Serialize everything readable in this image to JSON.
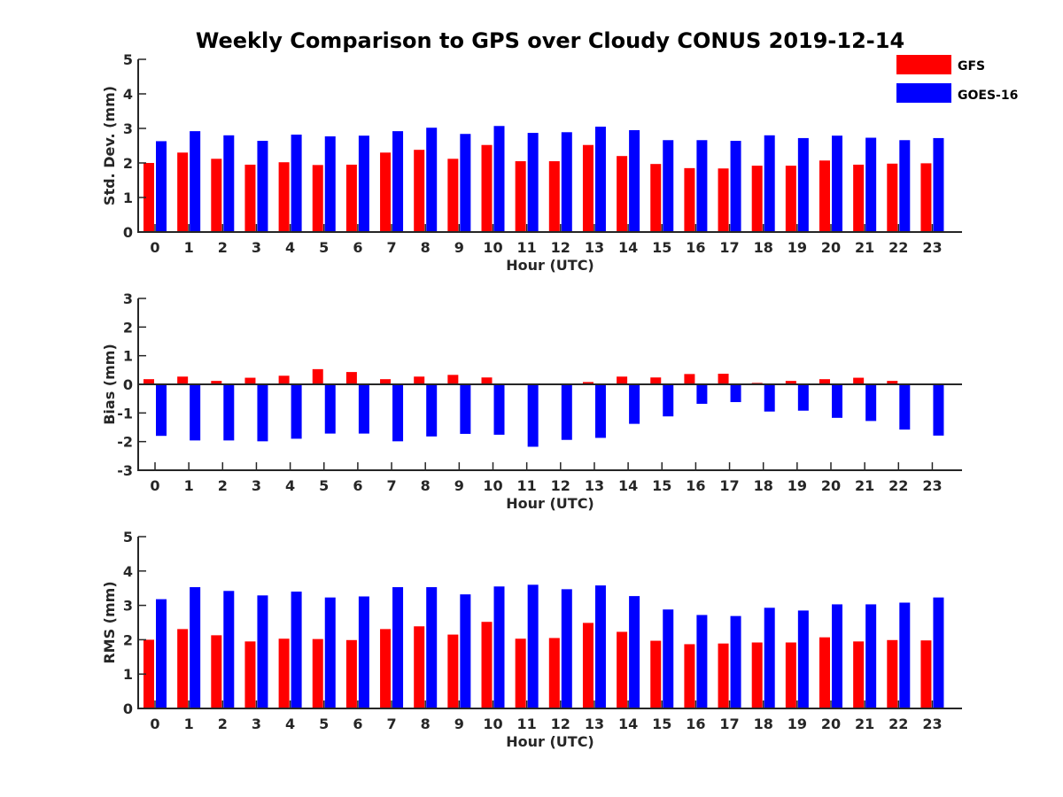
{
  "title": "Weekly Comparison to GPS over Cloudy CONUS 2019-12-14",
  "legend": [
    {
      "label": "GFS",
      "color": "#ff0000"
    },
    {
      "label": "GOES-16",
      "color": "#0000ff"
    }
  ],
  "chart_data": [
    {
      "type": "bar",
      "xlabel": "Hour (UTC)",
      "ylabel": "Std. Dev. (mm)",
      "ylim": [
        0,
        5
      ],
      "yticks": [
        0,
        1,
        2,
        3,
        4,
        5
      ],
      "categories": [
        "0",
        "1",
        "2",
        "3",
        "4",
        "5",
        "6",
        "7",
        "8",
        "9",
        "10",
        "11",
        "12",
        "13",
        "14",
        "15",
        "16",
        "17",
        "18",
        "19",
        "20",
        "21",
        "22",
        "23"
      ],
      "series": [
        {
          "name": "GFS",
          "color": "#ff0000",
          "values": [
            2.0,
            2.3,
            2.12,
            1.95,
            2.02,
            1.94,
            1.95,
            2.3,
            2.38,
            2.12,
            2.52,
            2.05,
            2.05,
            2.52,
            2.2,
            1.97,
            1.85,
            1.84,
            1.92,
            1.92,
            2.07,
            1.95,
            1.98,
            1.99
          ]
        },
        {
          "name": "GOES-16",
          "color": "#0000ff",
          "values": [
            2.63,
            2.92,
            2.8,
            2.64,
            2.82,
            2.77,
            2.79,
            2.92,
            3.02,
            2.84,
            3.07,
            2.87,
            2.89,
            3.05,
            2.95,
            2.66,
            2.66,
            2.64,
            2.8,
            2.72,
            2.79,
            2.73,
            2.66,
            2.72
          ]
        }
      ]
    },
    {
      "type": "bar",
      "xlabel": "Hour (UTC)",
      "ylabel": "Bias (mm)",
      "ylim": [
        -3,
        3
      ],
      "yticks": [
        -3,
        -2,
        -1,
        0,
        1,
        2,
        3
      ],
      "zero_line": true,
      "categories": [
        "0",
        "1",
        "2",
        "3",
        "4",
        "5",
        "6",
        "7",
        "8",
        "9",
        "10",
        "11",
        "12",
        "13",
        "14",
        "15",
        "16",
        "17",
        "18",
        "19",
        "20",
        "21",
        "22",
        "23"
      ],
      "series": [
        {
          "name": "GFS",
          "color": "#ff0000",
          "values": [
            0.18,
            0.27,
            0.12,
            0.23,
            0.3,
            0.53,
            0.43,
            0.18,
            0.27,
            0.33,
            0.24,
            -0.02,
            0.02,
            0.08,
            0.27,
            0.24,
            0.36,
            0.37,
            0.05,
            0.12,
            0.18,
            0.23,
            0.12,
            0.02
          ]
        },
        {
          "name": "GOES-16",
          "color": "#0000ff",
          "values": [
            -1.8,
            -1.96,
            -1.96,
            -1.99,
            -1.9,
            -1.72,
            -1.72,
            -1.99,
            -1.82,
            -1.73,
            -1.76,
            -2.18,
            -1.94,
            -1.87,
            -1.38,
            -1.12,
            -0.68,
            -0.62,
            -0.95,
            -0.92,
            -1.17,
            -1.28,
            -1.58,
            -1.79
          ]
        }
      ]
    },
    {
      "type": "bar",
      "xlabel": "Hour (UTC)",
      "ylabel": "RMS (mm)",
      "ylim": [
        0,
        5
      ],
      "yticks": [
        0,
        1,
        2,
        3,
        4,
        5
      ],
      "categories": [
        "0",
        "1",
        "2",
        "3",
        "4",
        "5",
        "6",
        "7",
        "8",
        "9",
        "10",
        "11",
        "12",
        "13",
        "14",
        "15",
        "16",
        "17",
        "18",
        "19",
        "20",
        "21",
        "22",
        "23"
      ],
      "series": [
        {
          "name": "GFS",
          "color": "#ff0000",
          "values": [
            2.0,
            2.31,
            2.13,
            1.95,
            2.03,
            2.02,
            1.99,
            2.31,
            2.39,
            2.15,
            2.52,
            2.03,
            2.05,
            2.49,
            2.23,
            1.97,
            1.87,
            1.89,
            1.92,
            1.92,
            2.07,
            1.95,
            1.99,
            1.98
          ]
        },
        {
          "name": "GOES-16",
          "color": "#0000ff",
          "values": [
            3.18,
            3.53,
            3.42,
            3.29,
            3.4,
            3.23,
            3.26,
            3.53,
            3.53,
            3.32,
            3.55,
            3.6,
            3.47,
            3.58,
            3.27,
            2.88,
            2.72,
            2.69,
            2.93,
            2.85,
            3.03,
            3.03,
            3.08,
            3.23
          ]
        }
      ]
    }
  ]
}
